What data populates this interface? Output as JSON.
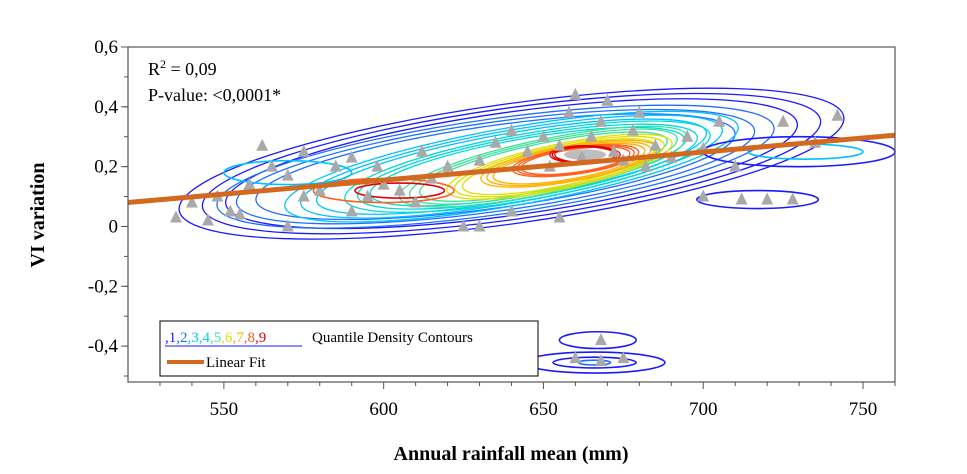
{
  "chart_data": {
    "type": "scatter",
    "xlabel": "Annual rainfall mean (mm)",
    "ylabel": "VI variation",
    "xlim": [
      520,
      760
    ],
    "ylim": [
      -0.52,
      0.6
    ],
    "x_ticks": [
      550,
      600,
      650,
      700,
      750
    ],
    "x_tick_labels": [
      "550",
      "600",
      "650",
      "700",
      "750"
    ],
    "y_ticks": [
      0.6,
      0.4,
      0.2,
      0,
      -0.2,
      -0.4
    ],
    "y_tick_labels": [
      "0,6",
      "0,4",
      "0,2",
      "0",
      "-0,2",
      "-0,4"
    ],
    "grid": false,
    "annotations": {
      "r2_label": "R",
      "r2_sup": "2",
      "r2_value": " = 0,09",
      "pvalue": "P-value: <0,0001*"
    },
    "legend": {
      "placement": "bottom-left",
      "contour_digits": [
        ",1",
        ",2",
        ",3",
        ",4",
        ",5",
        ",6",
        ",7",
        ",8",
        ",9"
      ],
      "contour_label": "Quantile Density Contours",
      "fit_label": "Linear Fit"
    },
    "colors": {
      "fit_line": "#d2691e",
      "points": "#a9a9a9",
      "contours": [
        "#1a1aff",
        "#1f6fff",
        "#00c2ff",
        "#00d9d9",
        "#40e0a0",
        "#e0e000",
        "#ffb000",
        "#ff6020",
        "#e60000"
      ]
    },
    "linear_fit": {
      "x": [
        520,
        760
      ],
      "y": [
        0.08,
        0.305
      ]
    },
    "points": [
      [
        535,
        0.03
      ],
      [
        540,
        0.08
      ],
      [
        545,
        0.02
      ],
      [
        548,
        0.1
      ],
      [
        552,
        0.05
      ],
      [
        555,
        0.04
      ],
      [
        558,
        0.14
      ],
      [
        562,
        0.27
      ],
      [
        565,
        0.2
      ],
      [
        570,
        0.17
      ],
      [
        575,
        0.1
      ],
      [
        580,
        0.12
      ],
      [
        585,
        0.2
      ],
      [
        590,
        0.23
      ],
      [
        595,
        0.1
      ],
      [
        600,
        0.14
      ],
      [
        605,
        0.12
      ],
      [
        610,
        0.08
      ],
      [
        615,
        0.16
      ],
      [
        620,
        0.2
      ],
      [
        625,
        0.0
      ],
      [
        630,
        0.22
      ],
      [
        635,
        0.28
      ],
      [
        640,
        0.32
      ],
      [
        645,
        0.25
      ],
      [
        650,
        0.3
      ],
      [
        652,
        0.2
      ],
      [
        655,
        0.27
      ],
      [
        658,
        0.38
      ],
      [
        660,
        0.44
      ],
      [
        662,
        0.23
      ],
      [
        665,
        0.3
      ],
      [
        668,
        0.35
      ],
      [
        670,
        0.42
      ],
      [
        672,
        0.25
      ],
      [
        675,
        0.22
      ],
      [
        678,
        0.32
      ],
      [
        680,
        0.38
      ],
      [
        682,
        0.2
      ],
      [
        685,
        0.27
      ],
      [
        690,
        0.23
      ],
      [
        695,
        0.3
      ],
      [
        700,
        0.26
      ],
      [
        705,
        0.35
      ],
      [
        710,
        0.2
      ],
      [
        712,
        0.09
      ],
      [
        720,
        0.09
      ],
      [
        725,
        0.35
      ],
      [
        728,
        0.09
      ],
      [
        735,
        0.28
      ],
      [
        742,
        0.37
      ],
      [
        570,
        0.0
      ],
      [
        590,
        0.05
      ],
      [
        640,
        0.05
      ],
      [
        655,
        0.03
      ],
      [
        630,
        0.0
      ],
      [
        660,
        -0.44
      ],
      [
        668,
        -0.38
      ],
      [
        668,
        -0.45
      ],
      [
        675,
        -0.44
      ],
      [
        598,
        0.2
      ],
      [
        612,
        0.25
      ],
      [
        575,
        0.25
      ],
      [
        700,
        0.1
      ]
    ],
    "contour_bands": [
      {
        "cx": 640,
        "cy": 0.21,
        "rx": 105,
        "ry": 0.2,
        "rot": -8
      },
      {
        "cx": 635,
        "cy": 0.2,
        "rx": 88,
        "ry": 0.16,
        "rot": -8
      },
      {
        "cx": 640,
        "cy": 0.2,
        "rx": 72,
        "ry": 0.13,
        "rot": -10
      },
      {
        "cx": 645,
        "cy": 0.2,
        "rx": 58,
        "ry": 0.11,
        "rot": -10
      },
      {
        "cx": 650,
        "cy": 0.2,
        "rx": 46,
        "ry": 0.09,
        "rot": -12
      },
      {
        "cx": 655,
        "cy": 0.2,
        "rx": 36,
        "ry": 0.075,
        "rot": -12
      },
      {
        "cx": 658,
        "cy": 0.21,
        "rx": 28,
        "ry": 0.06,
        "rot": -10
      },
      {
        "cx": 660,
        "cy": 0.22,
        "rx": 20,
        "ry": 0.045,
        "rot": -8
      },
      {
        "cx": 663,
        "cy": 0.24,
        "rx": 11,
        "ry": 0.03,
        "rot": 0
      }
    ],
    "extra_contours": [
      {
        "cx": 605,
        "cy": 0.12,
        "rx": 14,
        "ry": 0.025,
        "level": 8
      },
      {
        "cx": 600,
        "cy": 0.12,
        "rx": 22,
        "ry": 0.04,
        "level": 7
      },
      {
        "cx": 570,
        "cy": 0.18,
        "rx": 20,
        "ry": 0.04,
        "level": 2
      },
      {
        "cx": 730,
        "cy": 0.25,
        "rx": 30,
        "ry": 0.05,
        "level": 0
      },
      {
        "cx": 732,
        "cy": 0.25,
        "rx": 18,
        "ry": 0.025,
        "level": 2
      },
      {
        "cx": 717,
        "cy": 0.09,
        "rx": 19,
        "ry": 0.03,
        "level": 0
      },
      {
        "cx": 667,
        "cy": -0.38,
        "rx": 12,
        "ry": 0.028,
        "level": 0
      },
      {
        "cx": 666,
        "cy": -0.455,
        "rx": 22,
        "ry": 0.035,
        "level": 0
      },
      {
        "cx": 666,
        "cy": -0.455,
        "rx": 13,
        "ry": 0.018,
        "level": 0
      },
      {
        "cx": 666,
        "cy": -0.455,
        "rx": 5,
        "ry": 0.008,
        "level": 1
      }
    ]
  }
}
